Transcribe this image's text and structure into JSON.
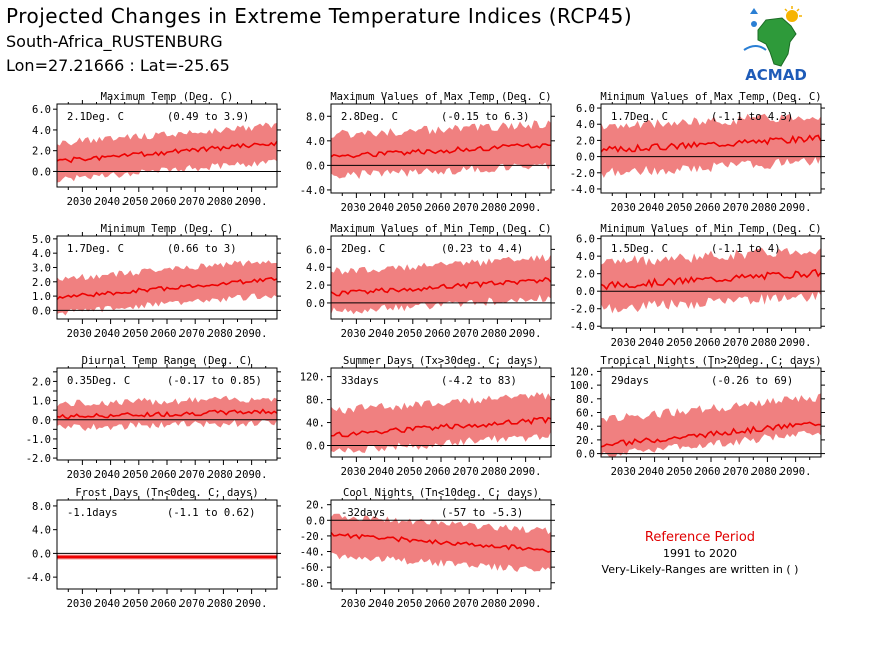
{
  "header": {
    "title": "Projected Changes in Extreme Temperature Indices (RCP45)",
    "location": "South-Africa_RUSTENBURG",
    "coords": "Lon=27.21666 : Lat=-25.65"
  },
  "logo": {
    "text": "ACMAD",
    "icon": "africa-map-logo"
  },
  "reference": {
    "title": "Reference Period",
    "years": "1991 to 2020",
    "note": "Very-Likely-Ranges are written in ( )"
  },
  "colors": {
    "line": "#ee0000",
    "band": "#f08080",
    "zero": "#000000"
  },
  "chart_data": [
    {
      "type": "area",
      "title": "Maximum Temp (Deg. C)",
      "mean_label": "2.1Deg. C",
      "range_label": "(0.49 to 3.9)",
      "ylim": [
        -1.5,
        6.5
      ],
      "yticks": [
        0,
        2,
        4,
        6
      ],
      "x_start": 2021,
      "x_end": 2099,
      "mean_start": 1.0,
      "mean_end": 2.7,
      "band_low_offset": -1.6,
      "band_high_offset": 1.6,
      "variability": 0.45,
      "seed": 1
    },
    {
      "type": "area",
      "title": "Maximum Values of Max Temp (Deg. C)",
      "mean_label": "2.8Deg. C",
      "range_label": "(-0.15 to 6.3)",
      "ylim": [
        -4.5,
        10
      ],
      "yticks": [
        -4,
        0,
        4,
        8
      ],
      "x_start": 2021,
      "x_end": 2099,
      "mean_start": 1.5,
      "mean_end": 3.3,
      "band_low_offset": -3.0,
      "band_high_offset": 3.2,
      "variability": 0.9,
      "seed": 2
    },
    {
      "type": "area",
      "title": "Minimum Values of Max Temp (Deg. C)",
      "mean_label": "1.7Deg. C",
      "range_label": "(-1.1 to 4.3)",
      "ylim": [
        -4.5,
        6.5
      ],
      "yticks": [
        -4,
        -2,
        0,
        2,
        4,
        6
      ],
      "x_start": 2021,
      "x_end": 2099,
      "mean_start": 0.8,
      "mean_end": 2.3,
      "band_low_offset": -2.6,
      "band_high_offset": 2.6,
      "variability": 0.8,
      "seed": 3
    },
    {
      "type": "area",
      "title": "Minimum Temp (Deg. C)",
      "mean_label": "1.7Deg. C",
      "range_label": "(0.66 to 3)",
      "ylim": [
        -0.6,
        5.2
      ],
      "yticks": [
        0,
        1,
        2,
        3,
        4,
        5
      ],
      "x_start": 2021,
      "x_end": 2099,
      "mean_start": 0.9,
      "mean_end": 2.2,
      "band_low_offset": -1.0,
      "band_high_offset": 1.2,
      "variability": 0.3,
      "seed": 4
    },
    {
      "type": "area",
      "title": "Maximum Values of Min Temp (Deg. C)",
      "mean_label": "2Deg. C",
      "range_label": "(0.23 to 4.4)",
      "ylim": [
        -1.8,
        7.5
      ],
      "yticks": [
        0,
        2,
        4,
        6
      ],
      "x_start": 2021,
      "x_end": 2099,
      "mean_start": 1.0,
      "mean_end": 2.6,
      "band_low_offset": -1.8,
      "band_high_offset": 2.3,
      "variability": 0.6,
      "seed": 5
    },
    {
      "type": "area",
      "title": "Minimum Values of Min Temp (Deg. C)",
      "mean_label": "1.5Deg. C",
      "range_label": "(-1.1 to 4)",
      "ylim": [
        -4.2,
        6.3
      ],
      "yticks": [
        -4,
        -2,
        0,
        2,
        4,
        6
      ],
      "x_start": 2021,
      "x_end": 2099,
      "mean_start": 0.6,
      "mean_end": 2.1,
      "band_low_offset": -2.4,
      "band_high_offset": 2.4,
      "variability": 0.8,
      "seed": 6
    },
    {
      "type": "area",
      "title": "Diurnal Temp Range (Deg. C)",
      "mean_label": "0.35Deg. C",
      "range_label": "(-0.17 to 0.85)",
      "ylim": [
        -2.1,
        2.7
      ],
      "yticks": [
        -2,
        -1.5,
        -1,
        -0.5,
        0,
        0.5,
        1,
        1.5,
        2,
        2.5
      ],
      "ytick_labels": [
        "-2.0",
        "",
        "-1.0",
        "",
        "0.0",
        "",
        "1.0",
        "",
        "2.0",
        ""
      ],
      "x_start": 2021,
      "x_end": 2099,
      "mean_start": 0.15,
      "mean_end": 0.45,
      "band_low_offset": -0.5,
      "band_high_offset": 0.6,
      "variability": 0.25,
      "seed": 7
    },
    {
      "type": "area",
      "title": "Summer Days (Tx>30deg. C; days)",
      "mean_label": "33days",
      "range_label": "(-4.2 to 83)",
      "ylim": [
        -20,
        135
      ],
      "yticks": [
        0,
        40,
        80,
        120
      ],
      "x_start": 2021,
      "x_end": 2099,
      "mean_start": 18,
      "mean_end": 45,
      "band_low_offset": -25,
      "band_high_offset": 40,
      "variability": 10,
      "seed": 8
    },
    {
      "type": "area",
      "title": "Tropical Nights (Tn>20deg. C; days)",
      "mean_label": "29days",
      "range_label": "(-0.26 to 69)",
      "ylim": [
        -5,
        125
      ],
      "yticks": [
        0,
        20,
        40,
        60,
        80,
        100,
        120
      ],
      "x_start": 2021,
      "x_end": 2099,
      "mean_start": 12,
      "mean_end": 45,
      "band_low_offset": -12,
      "band_high_offset": 35,
      "variability": 8,
      "seed": 9
    },
    {
      "type": "area",
      "title": "Frost Days (Tn<0deg. C; days)",
      "mean_label": "-1.1days",
      "range_label": "(-1.1 to 0.62)",
      "ylim": [
        -6,
        9
      ],
      "yticks": [
        -4,
        0,
        4,
        8
      ],
      "x_start": 2021,
      "x_end": 2099,
      "mean_start": -0.6,
      "mean_end": -0.6,
      "band_low_offset": -0.4,
      "band_high_offset": 0.4,
      "variability": 0.0,
      "seed": 10,
      "flat": true
    },
    {
      "type": "area",
      "title": "Cool Nights (Tn<10deg. C; days)",
      "mean_label": "-32days",
      "range_label": "(-57 to -5.3)",
      "ylim": [
        -88,
        26
      ],
      "yticks": [
        -80,
        -60,
        -40,
        -20,
        0,
        20
      ],
      "x_start": 2021,
      "x_end": 2099,
      "mean_start": -18,
      "mean_end": -38,
      "band_low_offset": -25,
      "band_high_offset": 22,
      "variability": 6,
      "seed": 11
    }
  ],
  "x_tick_labels": [
    "2030.",
    "2040.",
    "2050.",
    "2060.",
    "2070.",
    "2080.",
    "2090."
  ],
  "x_tick_years": [
    2030,
    2040,
    2050,
    2060,
    2070,
    2080,
    2090
  ]
}
